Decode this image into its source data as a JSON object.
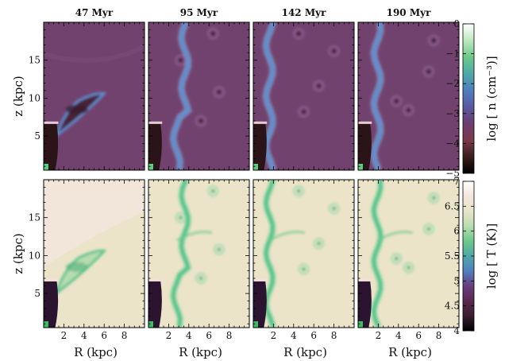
{
  "chart_data": {
    "type": "heatmap",
    "columns": [
      "47 Myr",
      "95 Myr",
      "142 Myr",
      "190 Myr"
    ],
    "xlabel": "R (kpc)",
    "x_ticks": [
      2,
      4,
      6,
      8
    ],
    "xlim": [
      0,
      10
    ],
    "ylabel": "z (kpc)",
    "y_ticks": [
      5,
      10,
      15
    ],
    "ylim": [
      0.5,
      20
    ],
    "rows": [
      {
        "quantity": "density",
        "colorbar_label": "log [ n (cm⁻³)]",
        "colorbar_ticks": [
          "0",
          "−1",
          "−2",
          "−3",
          "−4",
          "−5"
        ],
        "clim": [
          -5,
          0
        ],
        "colormap": [
          "#000000",
          "#3a1e1e",
          "#7a3a4a",
          "#6a3d6e",
          "#5a5aa0",
          "#4f7fbf",
          "#4fa8a8",
          "#6cc98a",
          "#bde8c0",
          "#ffffff"
        ],
        "background_color": "#72426f"
      },
      {
        "quantity": "temperature",
        "colorbar_label": "log [ T (K)]",
        "colorbar_ticks": [
          "7",
          "6.5",
          "6",
          "5.5",
          "5",
          "4.5",
          "4"
        ],
        "clim": [
          4,
          7
        ],
        "colormap": [
          "#000000",
          "#3a1e2e",
          "#5a2850",
          "#6a3d7e",
          "#4f7fbf",
          "#4fa8a8",
          "#6cc98a",
          "#b8dcb0",
          "#e9e4c8",
          "#f3e6dc",
          "#ffffff"
        ],
        "background_color": "#ece4c8"
      }
    ]
  }
}
